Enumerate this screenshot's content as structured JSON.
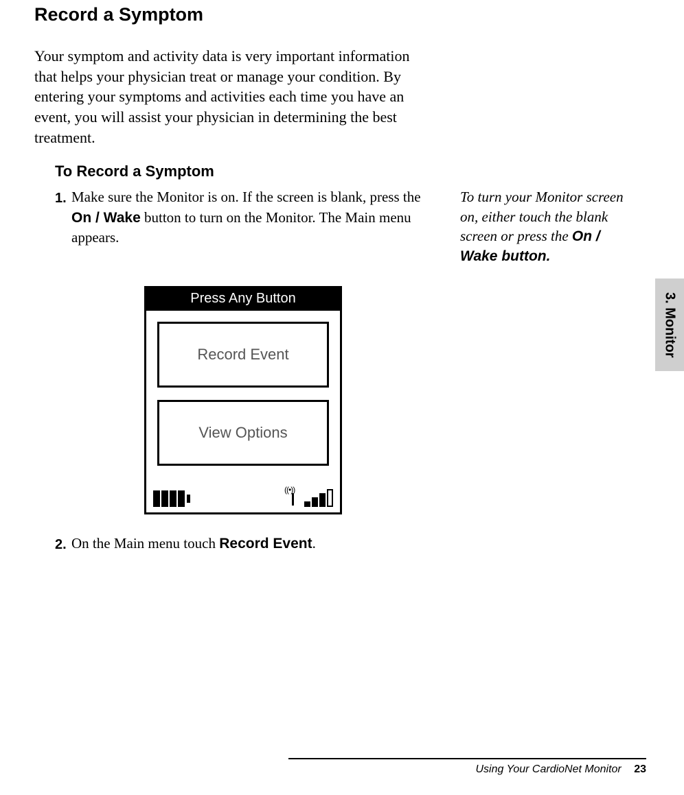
{
  "heading": "Record a Symptom",
  "intro": "Your symptom and activity data is very important information that helps your physician treat or manage your condition. By entering your symptoms and activities each time you have an event, you will assist your physician in determining the best treatment.",
  "subheading": "To Record a Symptom",
  "steps": [
    {
      "num": "1.",
      "pre": "Make sure the Monitor is on.  If the screen is blank, press the ",
      "bold": "On / Wake",
      "post": " button to turn on the Monitor.  The Main menu appears."
    },
    {
      "num": "2.",
      "pre": "On the Main menu touch ",
      "bold": "Record Event",
      "post": "."
    }
  ],
  "sidenote": {
    "line1": "To turn your Monitor screen on, either touch the blank screen or press the ",
    "bold": "On / Wake button."
  },
  "device": {
    "header": "Press Any Button",
    "btn1": "Record Event",
    "btn2": "View Options",
    "battery_cells": 4,
    "signal_bars": 4
  },
  "tab": "3. Monitor",
  "footer": {
    "text": "Using Your CardioNet Monitor",
    "page": "23"
  },
  "colors": {
    "text": "#000000",
    "bg": "#ffffff",
    "tab_bg": "#cfcfcf",
    "device_btn_text": "#555555"
  },
  "fonts": {
    "heading_family": "Helvetica, Arial, sans-serif",
    "body_family": "Georgia, Times New Roman, serif",
    "heading_size_pt": 20,
    "body_size_pt": 16,
    "sub_size_pt": 16
  }
}
